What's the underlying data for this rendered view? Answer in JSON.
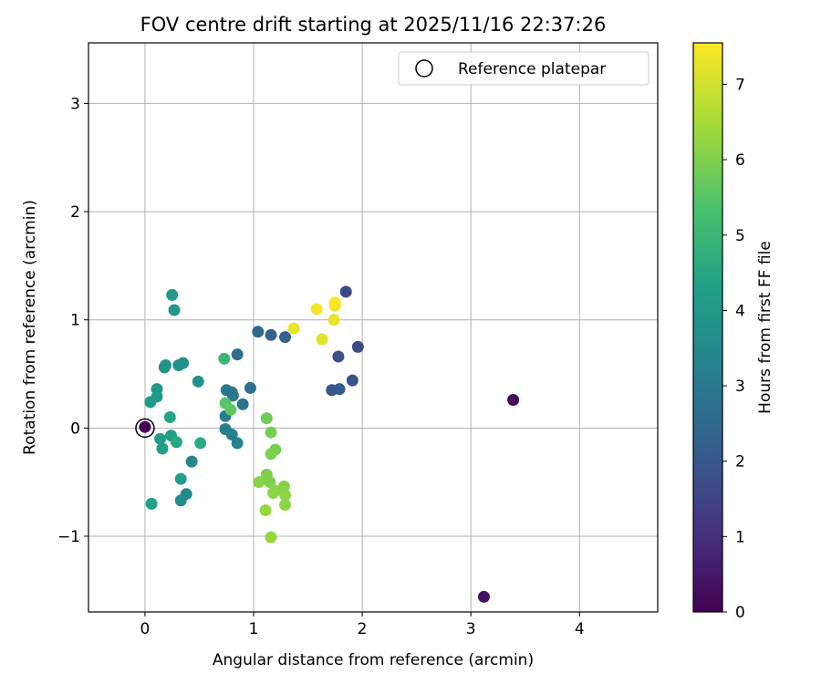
{
  "chart_data": {
    "type": "scatter",
    "title": "FOV centre drift starting at 2025/11/16 22:37:26",
    "xlabel": "Angular distance from reference (arcmin)",
    "ylabel": "Rotation from reference (arcmin)",
    "xlim": [
      -0.52,
      4.72
    ],
    "ylim": [
      -1.7,
      3.56
    ],
    "xticks": [
      0,
      1,
      2,
      3,
      4
    ],
    "yticks": [
      -1,
      0,
      1,
      2,
      3
    ],
    "grid": true,
    "legend": {
      "position": "top-right",
      "entries": [
        "Reference platepar"
      ]
    },
    "reference_point": {
      "x": 0.0,
      "y": 0.0,
      "label": "Reference platepar"
    },
    "colorbar": {
      "label": "Hours from first FF file",
      "colormap": "viridis",
      "range": [
        0,
        7.55
      ],
      "ticks": [
        0,
        1,
        2,
        3,
        4,
        5,
        6,
        7
      ]
    },
    "points": [
      {
        "x": 0.0,
        "y": 0.01,
        "hours": 0.0
      },
      {
        "x": 3.39,
        "y": 0.26,
        "hours": 0.2
      },
      {
        "x": 3.12,
        "y": -1.56,
        "hours": 0.4
      },
      {
        "x": 1.85,
        "y": 1.26,
        "hours": 1.6
      },
      {
        "x": 1.96,
        "y": 0.75,
        "hours": 1.7
      },
      {
        "x": 1.78,
        "y": 0.66,
        "hours": 1.8
      },
      {
        "x": 1.91,
        "y": 0.44,
        "hours": 1.9
      },
      {
        "x": 1.72,
        "y": 0.35,
        "hours": 2.0
      },
      {
        "x": 1.79,
        "y": 0.36,
        "hours": 2.1
      },
      {
        "x": 1.29,
        "y": 0.84,
        "hours": 2.3
      },
      {
        "x": 1.16,
        "y": 0.86,
        "hours": 2.4
      },
      {
        "x": 1.04,
        "y": 0.89,
        "hours": 2.5
      },
      {
        "x": 0.85,
        "y": 0.68,
        "hours": 2.6
      },
      {
        "x": 0.97,
        "y": 0.37,
        "hours": 2.7
      },
      {
        "x": 0.9,
        "y": 0.22,
        "hours": 2.8
      },
      {
        "x": 0.8,
        "y": 0.33,
        "hours": 2.9
      },
      {
        "x": 0.75,
        "y": 0.35,
        "hours": 3.0
      },
      {
        "x": 0.81,
        "y": 0.3,
        "hours": 3.0
      },
      {
        "x": 0.74,
        "y": 0.11,
        "hours": 3.1
      },
      {
        "x": 0.74,
        "y": -0.01,
        "hours": 3.1
      },
      {
        "x": 0.8,
        "y": -0.06,
        "hours": 3.2
      },
      {
        "x": 0.85,
        "y": -0.14,
        "hours": 3.2
      },
      {
        "x": 0.43,
        "y": -0.31,
        "hours": 3.4
      },
      {
        "x": 0.38,
        "y": -0.61,
        "hours": 3.5
      },
      {
        "x": 0.33,
        "y": -0.67,
        "hours": 3.6
      },
      {
        "x": 0.35,
        "y": 0.6,
        "hours": 3.7
      },
      {
        "x": 0.31,
        "y": 0.58,
        "hours": 3.8
      },
      {
        "x": 0.49,
        "y": 0.43,
        "hours": 3.8
      },
      {
        "x": 0.19,
        "y": 0.58,
        "hours": 3.9
      },
      {
        "x": 0.18,
        "y": 0.56,
        "hours": 3.9
      },
      {
        "x": 0.27,
        "y": 1.09,
        "hours": 4.0
      },
      {
        "x": 0.25,
        "y": 1.23,
        "hours": 4.0
      },
      {
        "x": 0.11,
        "y": 0.36,
        "hours": 4.0
      },
      {
        "x": 0.11,
        "y": 0.29,
        "hours": 4.1
      },
      {
        "x": 0.05,
        "y": 0.24,
        "hours": 4.1
      },
      {
        "x": 0.24,
        "y": -0.07,
        "hours": 4.2
      },
      {
        "x": 0.14,
        "y": -0.1,
        "hours": 4.2
      },
      {
        "x": 0.16,
        "y": -0.19,
        "hours": 4.2
      },
      {
        "x": 0.33,
        "y": -0.47,
        "hours": 4.3
      },
      {
        "x": 0.06,
        "y": -0.7,
        "hours": 4.3
      },
      {
        "x": 0.23,
        "y": 0.1,
        "hours": 4.4
      },
      {
        "x": 0.29,
        "y": -0.13,
        "hours": 4.5
      },
      {
        "x": 0.51,
        "y": -0.14,
        "hours": 4.6
      },
      {
        "x": 0.73,
        "y": 0.64,
        "hours": 5.0
      },
      {
        "x": 0.74,
        "y": 0.23,
        "hours": 5.5
      },
      {
        "x": 0.79,
        "y": 0.17,
        "hours": 5.6
      },
      {
        "x": 1.12,
        "y": 0.09,
        "hours": 5.8
      },
      {
        "x": 1.16,
        "y": -0.04,
        "hours": 5.9
      },
      {
        "x": 1.2,
        "y": -0.2,
        "hours": 5.9
      },
      {
        "x": 1.16,
        "y": -0.24,
        "hours": 6.0
      },
      {
        "x": 1.12,
        "y": -0.43,
        "hours": 6.0
      },
      {
        "x": 1.15,
        "y": -0.5,
        "hours": 6.0
      },
      {
        "x": 1.05,
        "y": -0.5,
        "hours": 6.1
      },
      {
        "x": 1.28,
        "y": -0.54,
        "hours": 6.1
      },
      {
        "x": 1.2,
        "y": -0.58,
        "hours": 6.1
      },
      {
        "x": 1.18,
        "y": -0.6,
        "hours": 6.2
      },
      {
        "x": 1.29,
        "y": -0.62,
        "hours": 6.2
      },
      {
        "x": 1.29,
        "y": -0.71,
        "hours": 6.2
      },
      {
        "x": 1.11,
        "y": -0.76,
        "hours": 6.3
      },
      {
        "x": 1.16,
        "y": -1.01,
        "hours": 6.3
      },
      {
        "x": 1.63,
        "y": 0.82,
        "hours": 7.2
      },
      {
        "x": 1.37,
        "y": 0.92,
        "hours": 7.3
      },
      {
        "x": 1.74,
        "y": 1.0,
        "hours": 7.3
      },
      {
        "x": 1.58,
        "y": 1.1,
        "hours": 7.4
      },
      {
        "x": 1.75,
        "y": 1.13,
        "hours": 7.4
      },
      {
        "x": 1.75,
        "y": 1.16,
        "hours": 7.5
      }
    ]
  }
}
